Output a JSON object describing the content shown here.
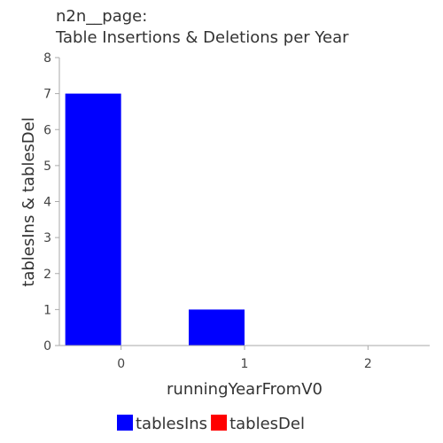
{
  "chart_data": {
    "type": "bar",
    "title": "n2n__page:",
    "subtitle": "Table Insertions & Deletions per Year",
    "xlabel": "runningYearFromV0",
    "ylabel": "tablesIns & tablesDel",
    "categories": [
      "0",
      "1",
      "2"
    ],
    "ylim": [
      0,
      8
    ],
    "yticks": [
      0,
      1,
      2,
      3,
      4,
      5,
      6,
      7,
      8
    ],
    "grid": false,
    "legend_position": "bottom",
    "series": [
      {
        "name": "tablesIns",
        "color": "#0000ff",
        "values": [
          7,
          1,
          0
        ]
      },
      {
        "name": "tablesDel",
        "color": "#ff0000",
        "values": [
          0,
          0,
          0
        ]
      }
    ]
  }
}
